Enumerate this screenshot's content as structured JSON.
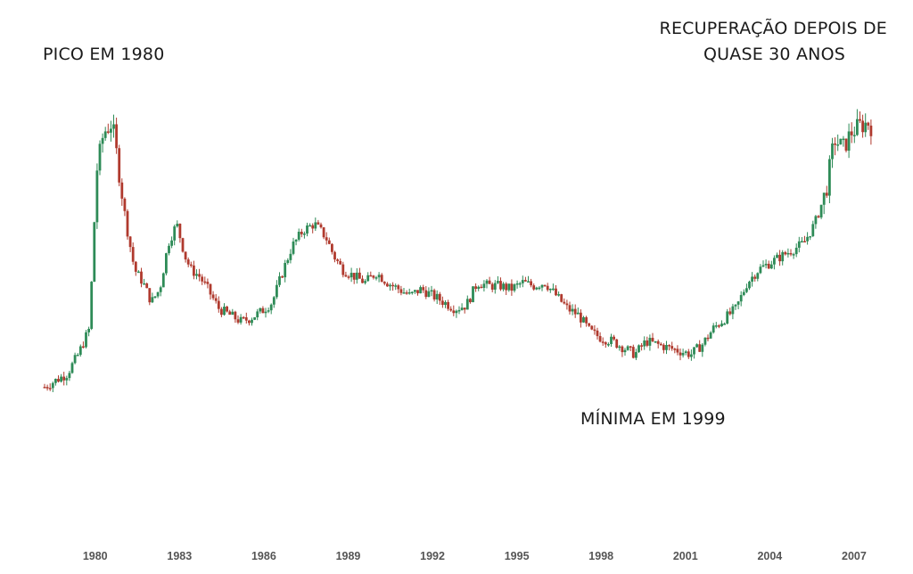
{
  "chart_data": {
    "type": "candlestick",
    "xlabel": "",
    "ylabel": "",
    "x_ticks": [
      "1980",
      "1983",
      "1986",
      "1989",
      "1992",
      "1995",
      "1998",
      "2001",
      "2004",
      "2007"
    ],
    "x_range": [
      1978.2,
      2007.7
    ],
    "y_range": [
      0,
      100
    ],
    "grid": false,
    "legend": "none",
    "colors": {
      "up": "#2e8b57",
      "down": "#b03a2e",
      "annotation_text": "#1a1a1a",
      "tick_text": "#555555"
    },
    "close_series": {
      "note_units": "relative price level, 0-100",
      "x": [
        1978.2,
        1978.6,
        1979.0,
        1979.4,
        1979.8,
        1980.05,
        1980.3,
        1980.6,
        1980.9,
        1981.1,
        1981.4,
        1981.7,
        1982.0,
        1982.3,
        1982.6,
        1982.9,
        1983.2,
        1983.4,
        1983.7,
        1984.0,
        1984.4,
        1984.8,
        1985.2,
        1985.5,
        1985.9,
        1986.3,
        1986.7,
        1987.0,
        1987.4,
        1987.8,
        1988.2,
        1988.5,
        1988.8,
        1989.2,
        1989.6,
        1990.0,
        1990.4,
        1990.8,
        1991.2,
        1991.6,
        1992.0,
        1992.4,
        1992.8,
        1993.2,
        1993.6,
        1994.0,
        1994.4,
        1994.8,
        1995.2,
        1995.6,
        1996.0,
        1996.4,
        1996.8,
        1997.2,
        1997.6,
        1998.0,
        1998.4,
        1998.8,
        1999.2,
        1999.6,
        2000.0,
        2000.4,
        2000.8,
        2001.2,
        2001.6,
        2002.0,
        2002.4,
        2002.8,
        2003.2,
        2003.6,
        2004.0,
        2004.4,
        2004.8,
        2005.2,
        2005.6,
        2006.0,
        2006.3,
        2006.6,
        2006.9,
        2007.2,
        2007.5,
        2007.7
      ],
      "values": [
        12,
        14,
        16,
        22,
        30,
        78,
        90,
        93,
        75,
        62,
        48,
        44,
        38,
        42,
        56,
        62,
        52,
        48,
        46,
        42,
        36,
        34,
        32,
        33,
        35,
        38,
        48,
        55,
        60,
        62,
        58,
        52,
        48,
        46,
        44,
        47,
        44,
        42,
        40,
        42,
        40,
        38,
        36,
        37,
        44,
        43,
        43,
        42,
        44,
        43,
        44,
        40,
        36,
        34,
        29,
        27,
        26,
        24,
        22,
        26,
        25,
        24,
        23,
        22,
        25,
        30,
        33,
        36,
        44,
        48,
        50,
        52,
        54,
        56,
        62,
        72,
        88,
        85,
        90,
        92,
        93,
        91
      ]
    }
  },
  "annotations": {
    "peak": "PICO EM 1980",
    "low": "MÍNIMA EM 1999",
    "recovery_line1": "RECUPERAÇÃO DEPOIS DE",
    "recovery_line2": "QUASE 30 ANOS"
  }
}
